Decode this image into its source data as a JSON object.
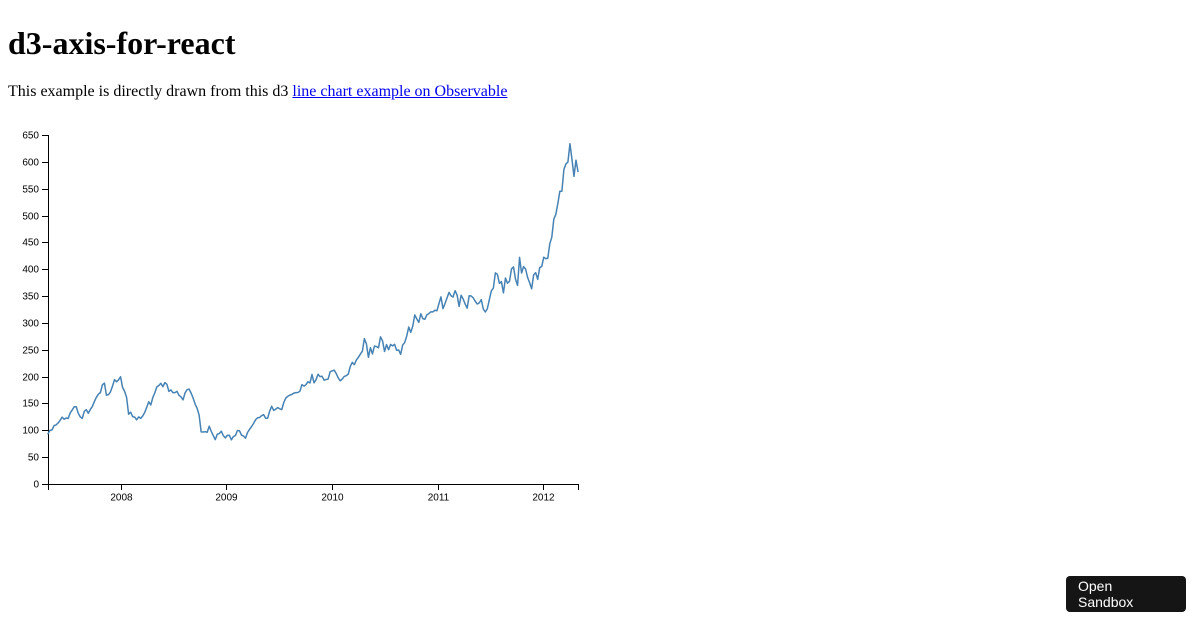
{
  "page": {
    "title": "d3-axis-for-react",
    "description_prefix": "This example is directly drawn from this d3 ",
    "link_text": "line chart example on Observable",
    "link_color": "#0000ee",
    "background_color": "#ffffff"
  },
  "sandbox_button": {
    "label": "Open Sandbox",
    "bg_color": "#151515",
    "text_color": "#ffffff"
  },
  "chart_data": {
    "type": "line",
    "title": "",
    "xlabel": "",
    "ylabel": "",
    "legend": "none",
    "grid": false,
    "line_color": "#4682b4",
    "axis_color": "#000000",
    "ylim": [
      0,
      650
    ],
    "y_ticks": [
      0,
      50,
      100,
      150,
      200,
      250,
      300,
      350,
      400,
      450,
      500,
      550,
      600,
      650
    ],
    "x_ticks": [
      2008,
      2009,
      2010,
      2011,
      2012
    ],
    "x_unit": "year",
    "x_start_year": 2007.3096,
    "x_step_years": 0.019093,
    "values": [
      93.5,
      99.9,
      100.8,
      108.7,
      110.0,
      113.6,
      118.4,
      124.5,
      120.5,
      123.0,
      122.0,
      132.3,
      137.7,
      143.8,
      143.9,
      131.9,
      125.0,
      122.1,
      135.3,
      138.5,
      131.8,
      138.8,
      144.2,
      153.5,
      161.5,
      167.3,
      170.4,
      184.7,
      187.9,
      165.4,
      166.4,
      171.5,
      182.2,
      194.3,
      190.4,
      193.9,
      199.8,
      180.0,
      172.7,
      161.4,
      130.0,
      133.8,
      125.5,
      124.6,
      119.5,
      125.0,
      122.2,
      126.6,
      133.3,
      143.0,
      153.1,
      147.1,
      161.0,
      169.7,
      180.9,
      183.5,
      187.6,
      181.2,
      188.8,
      185.6,
      172.4,
      175.3,
      170.1,
      170.1,
      172.6,
      165.2,
      162.1,
      156.7,
      169.5,
      175.7,
      176.8,
      169.5,
      160.2,
      148.9,
      140.9,
      128.2,
      97.1,
      96.8,
      97.4,
      96.4,
      107.6,
      98.2,
      90.2,
      82.6,
      92.7,
      94.0,
      98.3,
      90.0,
      85.8,
      90.8,
      90.6,
      82.3,
      88.4,
      90.1,
      99.7,
      99.2,
      91.2,
      89.3,
      85.3,
      95.9,
      101.6,
      106.9,
      112.7,
      119.6,
      123.4,
      123.9,
      127.2,
      129.2,
      122.4,
      122.5,
      135.8,
      144.7,
      137.0,
      139.5,
      142.4,
      140.0,
      138.5,
      151.8,
      160.0,
      163.4,
      165.5,
      166.8,
      169.2,
      170.2,
      170.3,
      172.9,
      185.0,
      182.4,
      184.9,
      190.5,
      188.1,
      203.9,
      188.5,
      194.3,
      204.4,
      199.9,
      200.6,
      193.3,
      194.7,
      195.4,
      209.0,
      210.7,
      212.0,
      205.9,
      197.8,
      192.1,
      195.5,
      200.4,
      201.7,
      204.6,
      218.9,
      226.6,
      222.2,
      230.9,
      236.0,
      241.8,
      247.4,
      270.8,
      261.1,
      235.9,
      253.8,
      242.3,
      256.9,
      256.0,
      253.5,
      274.1,
      266.7,
      246.9,
      259.6,
      250.0,
      259.9,
      257.3,
      260.1,
      249.1,
      249.6,
      241.6,
      258.8,
      263.4,
      275.4,
      292.3,
      282.5,
      294.1,
      314.7,
      307.5,
      301.0,
      317.1,
      308.0,
      306.7,
      315.0,
      317.4,
      320.6,
      320.6,
      323.6,
      322.6,
      336.1,
      348.5,
      326.7,
      336.1,
      346.5,
      356.9,
      350.6,
      348.2,
      360.0,
      352.0,
      330.7,
      351.5,
      344.6,
      335.1,
      327.5,
      350.7,
      350.1,
      346.7,
      340.5,
      335.2,
      337.4,
      343.4,
      325.9,
      320.3,
      326.4,
      343.3,
      359.7,
      364.9,
      393.3,
      390.5,
      373.6,
      377.0,
      356.0,
      383.6,
      374.0,
      377.5,
      400.5,
      404.3,
      381.3,
      369.8,
      422.0,
      392.9,
      405.0,
      400.2,
      384.6,
      374.9,
      363.6,
      389.7,
      393.6,
      381.0,
      403.3,
      405.0,
      422.4,
      419.8,
      420.3,
      447.3,
      459.7,
      493.4,
      502.1,
      522.4,
      545.2,
      545.2,
      585.6,
      596.1,
      599.6,
      633.7,
      605.2,
      573.0,
      603.0,
      582.1
    ]
  }
}
